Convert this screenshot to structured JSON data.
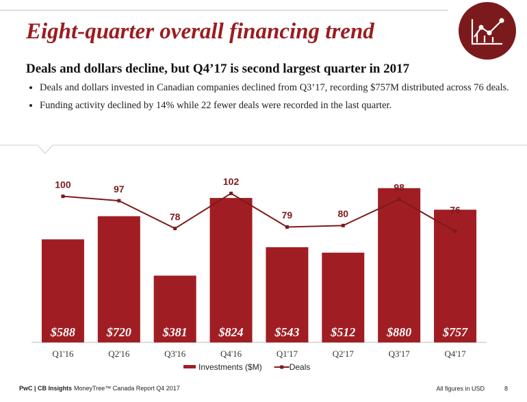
{
  "header": {
    "title": "Eight-quarter overall financing trend",
    "subtitle": "Deals and dollars decline, but Q4’17 is second largest quarter in 2017"
  },
  "bullets": [
    "Deals and dollars invested in Canadian companies declined from Q3’17, recording $757M distributed across 76 deals.",
    "Funding activity declined by 14% while 22 fewer deals were recorded in the last quarter."
  ],
  "chart_data": {
    "type": "bar",
    "categories": [
      "Q1'16",
      "Q2'16",
      "Q3'16",
      "Q4'16",
      "Q1'17",
      "Q2'17",
      "Q3'17",
      "Q4'17"
    ],
    "series": [
      {
        "name": "Investments ($M)",
        "color": "#a01e23",
        "values": [
          588,
          720,
          381,
          824,
          543,
          512,
          880,
          757
        ],
        "value_labels": [
          "$588",
          "$720",
          "$381",
          "$824",
          "$543",
          "$512",
          "$880",
          "$757"
        ]
      },
      {
        "name": "Deals",
        "type": "line",
        "axis": "y2",
        "color": "#7b1a1c",
        "values": [
          100,
          97,
          78,
          102,
          79,
          80,
          98,
          76
        ]
      }
    ],
    "ylim": [
      0,
      1000
    ],
    "y2lim": [
      0,
      120
    ]
  },
  "footer": {
    "brand": "PwC | CB Insights",
    "report": "MoneyTree™ Canada Report Q4 2017",
    "note": "All figures in USD",
    "page": "8"
  }
}
